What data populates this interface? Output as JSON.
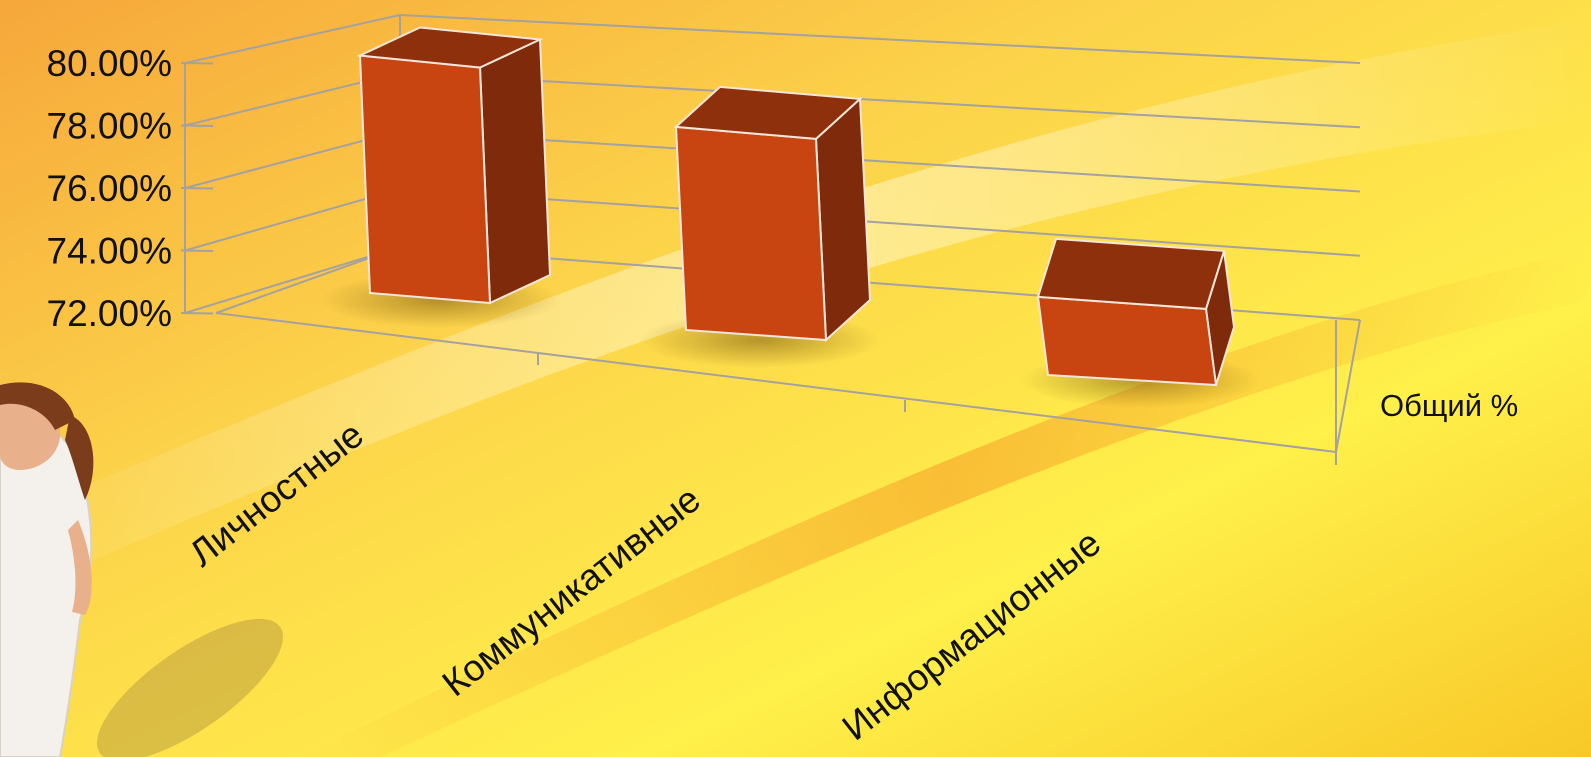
{
  "chart_data": {
    "type": "bar",
    "style": "3d-column",
    "categories": [
      "Личностные",
      "Коммуникативные",
      "Информационные"
    ],
    "series": [
      {
        "name": "Общий %",
        "values": [
          79.6,
          78.5,
          74.5
        ]
      }
    ],
    "ylim": [
      72,
      80
    ],
    "yticks": [
      72,
      74,
      76,
      78,
      80
    ],
    "ytick_labels": [
      "72.00%",
      "74.00%",
      "76.00%",
      "78.00%",
      "80.00%"
    ],
    "grid": true,
    "bar_color": "#C84410",
    "title": "",
    "xlabel": "",
    "ylabel": ""
  }
}
